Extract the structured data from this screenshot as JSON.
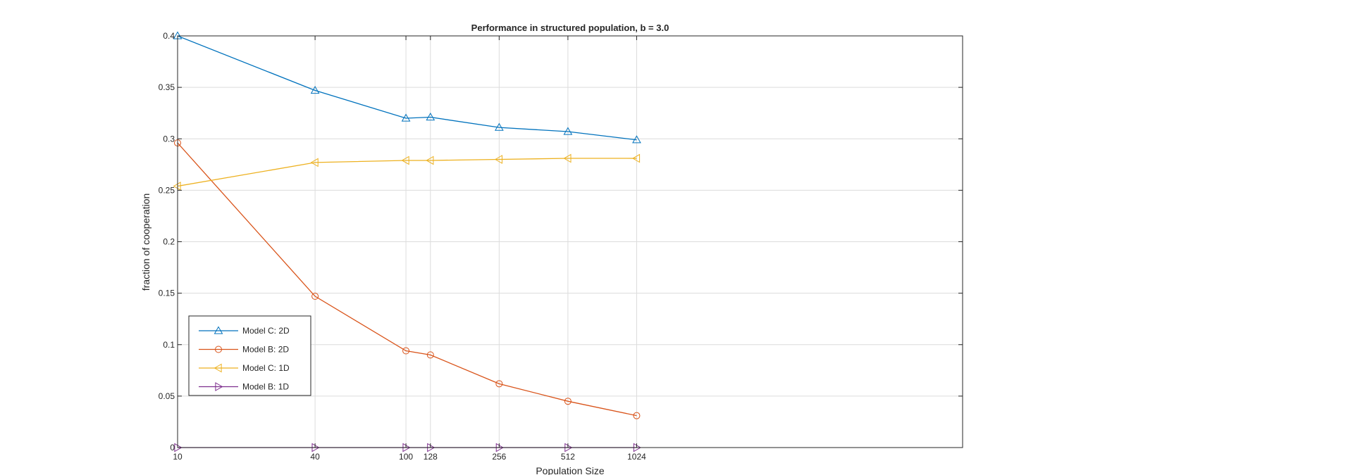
{
  "chart_data": {
    "type": "line",
    "title": "Performance in structured population, b = 3.0",
    "xlabel": "Population Size",
    "ylabel": "fraction of cooperation",
    "x_ticks": [
      10,
      40,
      100,
      128,
      256,
      512,
      1024
    ],
    "x_tick_labels": [
      "10",
      "40",
      "100",
      "128",
      "256",
      "512",
      "1024"
    ],
    "y_ticks": [
      0,
      0.05,
      0.1,
      0.15,
      0.2,
      0.25,
      0.3,
      0.35,
      0.4
    ],
    "y_tick_labels": [
      "0",
      "0.05",
      "0.1",
      "0.15",
      "0.2",
      "0.25",
      "0.3",
      "0.35",
      "0.4"
    ],
    "ylim": [
      0,
      0.4
    ],
    "grid": true,
    "legend_position": "bottom-left",
    "x": [
      10,
      40,
      100,
      128,
      256,
      512,
      1024
    ],
    "series": [
      {
        "name": "Model C: 2D",
        "color": "#0072BD",
        "marker": "triangle-up",
        "values": [
          0.4,
          0.347,
          0.32,
          0.321,
          0.311,
          0.307,
          0.299
        ]
      },
      {
        "name": "Model B: 2D",
        "color": "#D95319",
        "marker": "circle",
        "values": [
          0.296,
          0.147,
          0.094,
          0.09,
          0.062,
          0.045,
          0.031
        ]
      },
      {
        "name": "Model C: 1D",
        "color": "#EDB120",
        "marker": "triangle-left",
        "values": [
          0.254,
          0.277,
          0.279,
          0.279,
          0.28,
          0.281,
          0.281
        ]
      },
      {
        "name": "Model B: 1D",
        "color": "#7E2F8E",
        "marker": "triangle-right",
        "values": [
          0.0,
          0.0,
          0.0,
          0.0,
          0.0,
          0.0,
          0.0
        ]
      }
    ]
  }
}
